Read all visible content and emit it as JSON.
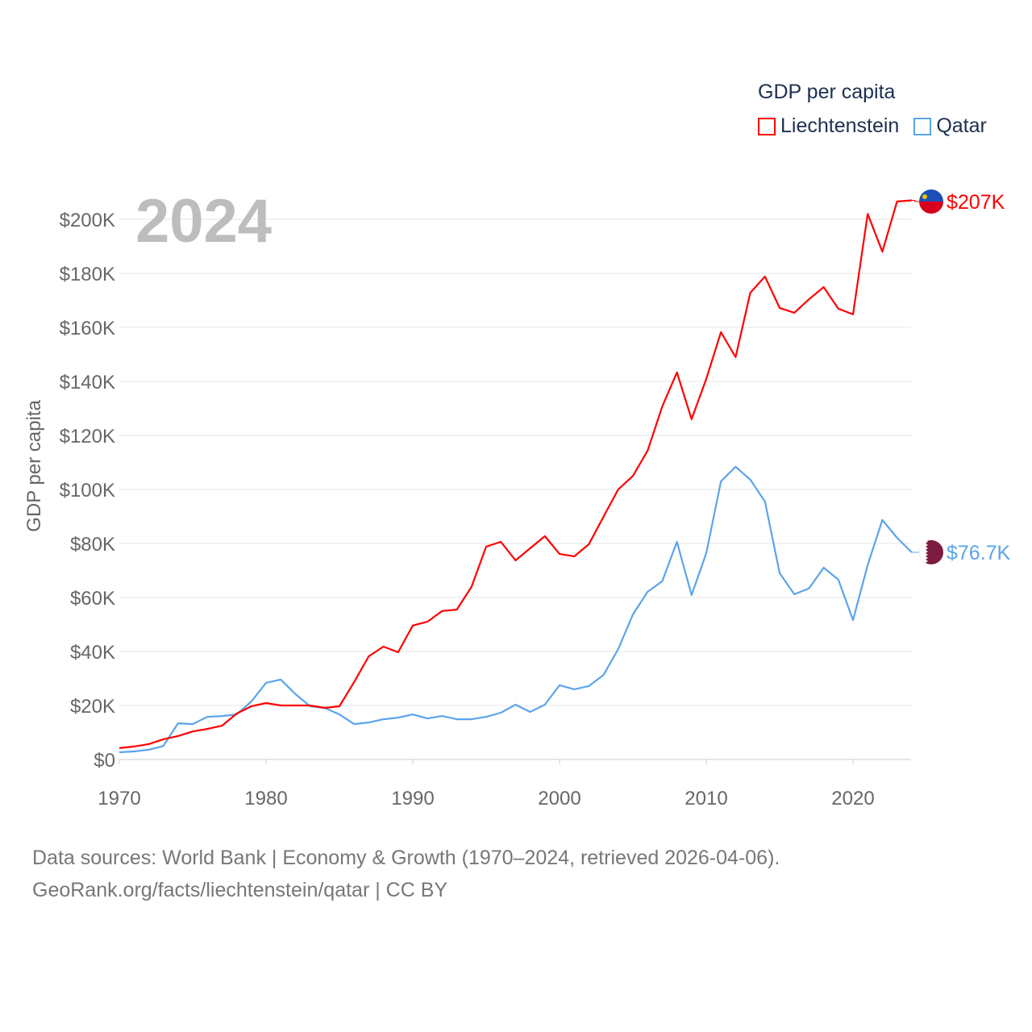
{
  "chart_data": {
    "type": "line",
    "title": "GDP per capita",
    "year_label": "2024",
    "xlabel": "",
    "ylabel": "GDP per capita",
    "xlim": [
      1970,
      2024
    ],
    "ylim": [
      0,
      207
    ],
    "x_ticks": [
      1970,
      1980,
      1990,
      2000,
      2010,
      2020
    ],
    "y_ticks": [
      0,
      20,
      40,
      60,
      80,
      100,
      120,
      140,
      160,
      180,
      200
    ],
    "y_tick_labels": [
      "$0",
      "$20K",
      "$40K",
      "$60K",
      "$80K",
      "$100K",
      "$120K",
      "$140K",
      "$160K",
      "$180K",
      "$200K"
    ],
    "grid": true,
    "legend_position": "top-right",
    "x": [
      1970,
      1971,
      1972,
      1973,
      1974,
      1975,
      1976,
      1977,
      1978,
      1979,
      1980,
      1981,
      1982,
      1983,
      1984,
      1985,
      1986,
      1987,
      1988,
      1989,
      1990,
      1991,
      1992,
      1993,
      1994,
      1995,
      1996,
      1997,
      1998,
      1999,
      2000,
      2001,
      2002,
      2003,
      2004,
      2005,
      2006,
      2007,
      2008,
      2009,
      2010,
      2011,
      2012,
      2013,
      2014,
      2015,
      2016,
      2017,
      2018,
      2019,
      2020,
      2021,
      2022,
      2023,
      2024
    ],
    "series": [
      {
        "name": "Liechtenstein",
        "color": "#ff0000",
        "end_label": "$207K",
        "values": [
          4.2,
          4.8,
          5.7,
          7.5,
          8.7,
          10.4,
          11.3,
          12.5,
          17,
          19.7,
          20.9,
          20,
          20,
          20,
          19.1,
          19.7,
          28.7,
          38.2,
          41.8,
          39.7,
          49.6,
          51,
          55,
          55.5,
          63.9,
          78.8,
          80.6,
          73.7,
          78.2,
          82.7,
          76.1,
          75.2,
          79.7,
          89.9,
          100,
          105,
          114.3,
          130.7,
          143.3,
          126,
          140.9,
          158.2,
          149,
          172.8,
          178.8,
          167.2,
          165.4,
          170.4,
          174.9,
          166.9,
          164.8,
          202,
          188,
          206.6,
          207
        ]
      },
      {
        "name": "Qatar",
        "color": "#5ba4ea",
        "end_label": "$76.7K",
        "values": [
          2.7,
          3,
          3.6,
          5,
          13.4,
          13.1,
          15.8,
          16.1,
          16.7,
          21.5,
          28.4,
          29.6,
          24.2,
          19.7,
          19.1,
          16.7,
          13.1,
          13.7,
          14.9,
          15.5,
          16.7,
          15.2,
          16.1,
          14.9,
          14.9,
          15.8,
          17.3,
          20.3,
          17.6,
          20.3,
          27.5,
          26,
          27.2,
          31.3,
          40.9,
          53.7,
          62.1,
          66,
          80.6,
          60.9,
          76.4,
          103,
          108.4,
          103.6,
          95.5,
          69,
          61.2,
          63.3,
          71,
          66.6,
          51.6,
          72,
          88.7,
          82.1,
          76.7
        ]
      }
    ]
  },
  "footer": {
    "line1": "Data sources: World Bank | Economy & Growth (1970–2024, retrieved 2026-04-06).",
    "line2": "GeoRank.org/facts/liechtenstein/qatar | CC BY"
  }
}
